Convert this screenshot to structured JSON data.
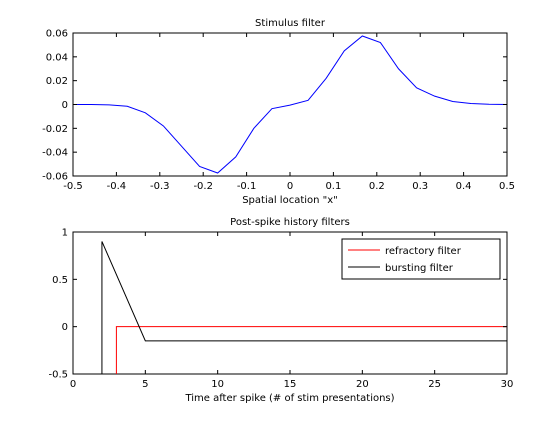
{
  "chart_data": [
    {
      "type": "line",
      "title": "Stimulus filter",
      "xlabel": "Spatial location \"x\"",
      "ylabel": "",
      "xlim": [
        -0.5,
        0.5
      ],
      "ylim": [
        -0.06,
        0.06
      ],
      "xticks": [
        -0.5,
        -0.4,
        -0.3,
        -0.2,
        -0.1,
        0,
        0.1,
        0.2,
        0.3,
        0.4,
        0.5
      ],
      "xtick_labels": [
        "-0.5",
        "-0.4",
        "-0.3",
        "-0.2",
        "-0.1",
        "0",
        "0.1",
        "0.2",
        "0.3",
        "0.4",
        "0.5"
      ],
      "yticks": [
        -0.06,
        -0.04,
        -0.02,
        0,
        0.02,
        0.04,
        0.06
      ],
      "ytick_labels": [
        "-0.06",
        "-0.04",
        "-0.02",
        "0",
        "0.02",
        "0.04",
        "0.06"
      ],
      "grid": false,
      "series": [
        {
          "color": "#0000ff",
          "x": [
            -0.5,
            -0.4583,
            -0.4167,
            -0.375,
            -0.3333,
            -0.2917,
            -0.25,
            -0.2083,
            -0.1667,
            -0.125,
            -0.0833,
            -0.0417,
            0,
            0.0417,
            0.0833,
            0.125,
            0.1667,
            0.2083,
            0.25,
            0.2917,
            0.3333,
            0.375,
            0.4167,
            0.4583,
            0.5
          ],
          "y": [
            0,
            0,
            -0.0003,
            -0.0015,
            -0.007,
            -0.018,
            -0.035,
            -0.052,
            -0.0575,
            -0.044,
            -0.02,
            -0.0035,
            -0.0005,
            0.0035,
            0.022,
            0.045,
            0.0575,
            0.052,
            0.03,
            0.014,
            0.007,
            0.0025,
            0.0008,
            0.0002,
            0
          ]
        }
      ]
    },
    {
      "type": "line",
      "title": "Post-spike history filters",
      "xlabel": "Time after spike (# of stim presentations)",
      "ylabel": "",
      "xlim": [
        0,
        30
      ],
      "ylim": [
        -0.5,
        1
      ],
      "xticks": [
        0,
        5,
        10,
        15,
        20,
        25,
        30
      ],
      "xtick_labels": [
        "0",
        "5",
        "10",
        "15",
        "20",
        "25",
        "30"
      ],
      "yticks": [
        -0.5,
        0,
        0.5,
        1
      ],
      "ytick_labels": [
        "-0.5",
        "0",
        "0.5",
        "1"
      ],
      "grid": false,
      "legend": {
        "position": "top-right"
      },
      "series": [
        {
          "name": "refractory filter",
          "color": "#ff0000",
          "x": [
            3,
            3,
            30
          ],
          "y": [
            -0.5,
            0,
            0
          ]
        },
        {
          "name": "bursting filter",
          "color": "#000000",
          "x": [
            2,
            2,
            5,
            30
          ],
          "y": [
            -0.5,
            0.9,
            -0.15,
            -0.15
          ]
        }
      ]
    }
  ]
}
